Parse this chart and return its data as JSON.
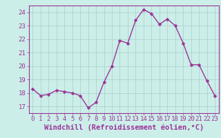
{
  "x": [
    0,
    1,
    2,
    3,
    4,
    5,
    6,
    7,
    8,
    9,
    10,
    11,
    12,
    13,
    14,
    15,
    16,
    17,
    18,
    19,
    20,
    21,
    22,
    23
  ],
  "y": [
    18.3,
    17.8,
    17.9,
    18.2,
    18.1,
    18.0,
    17.8,
    16.9,
    17.3,
    18.8,
    20.0,
    21.9,
    21.7,
    23.4,
    24.2,
    23.9,
    23.1,
    23.5,
    23.0,
    21.7,
    20.1,
    20.1,
    18.9,
    17.8
  ],
  "line_color": "#993399",
  "marker": "D",
  "marker_size": 2.5,
  "bg_color": "#cceee8",
  "grid_color": "#aacccc",
  "xlabel": "Windchill (Refroidissement éolien,°C)",
  "ylim": [
    16.5,
    24.5
  ],
  "xlim": [
    -0.5,
    23.5
  ],
  "yticks": [
    17,
    18,
    19,
    20,
    21,
    22,
    23,
    24
  ],
  "xticks": [
    0,
    1,
    2,
    3,
    4,
    5,
    6,
    7,
    8,
    9,
    10,
    11,
    12,
    13,
    14,
    15,
    16,
    17,
    18,
    19,
    20,
    21,
    22,
    23
  ],
  "xlabel_fontsize": 7.5,
  "tick_fontsize": 6.5,
  "line_width": 1.0
}
